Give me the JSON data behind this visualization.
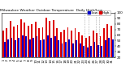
{
  "title": "Milwaukee Weather Outdoor Temperature  Daily High/Low",
  "title_fontsize": 3.2,
  "highs": [
    68,
    72,
    85,
    75,
    78,
    88,
    82,
    76,
    79,
    83,
    72,
    74,
    91,
    85,
    87,
    72,
    65,
    70,
    74,
    68,
    72,
    65,
    60,
    55,
    58,
    68,
    63,
    58,
    72,
    80,
    76
  ],
  "lows": [
    48,
    52,
    55,
    50,
    55,
    60,
    58,
    52,
    55,
    58,
    50,
    52,
    60,
    55,
    58,
    50,
    45,
    48,
    52,
    45,
    50,
    45,
    40,
    38,
    40,
    48,
    42,
    40,
    50,
    55,
    52
  ],
  "high_color": "#dd0000",
  "low_color": "#0000cc",
  "bg_color": "#ffffff",
  "ylim": [
    20,
    100
  ],
  "yticks": [
    20,
    30,
    40,
    50,
    60,
    70,
    80,
    90,
    100
  ],
  "ylabel_fontsize": 3.0,
  "xlabel_fontsize": 2.8,
  "legend_high": "High",
  "legend_low": "Low",
  "legend_fontsize": 3.0,
  "dotted_vlines": [
    22.5,
    23.5,
    25.5,
    26.5
  ],
  "bar_width": 0.42
}
